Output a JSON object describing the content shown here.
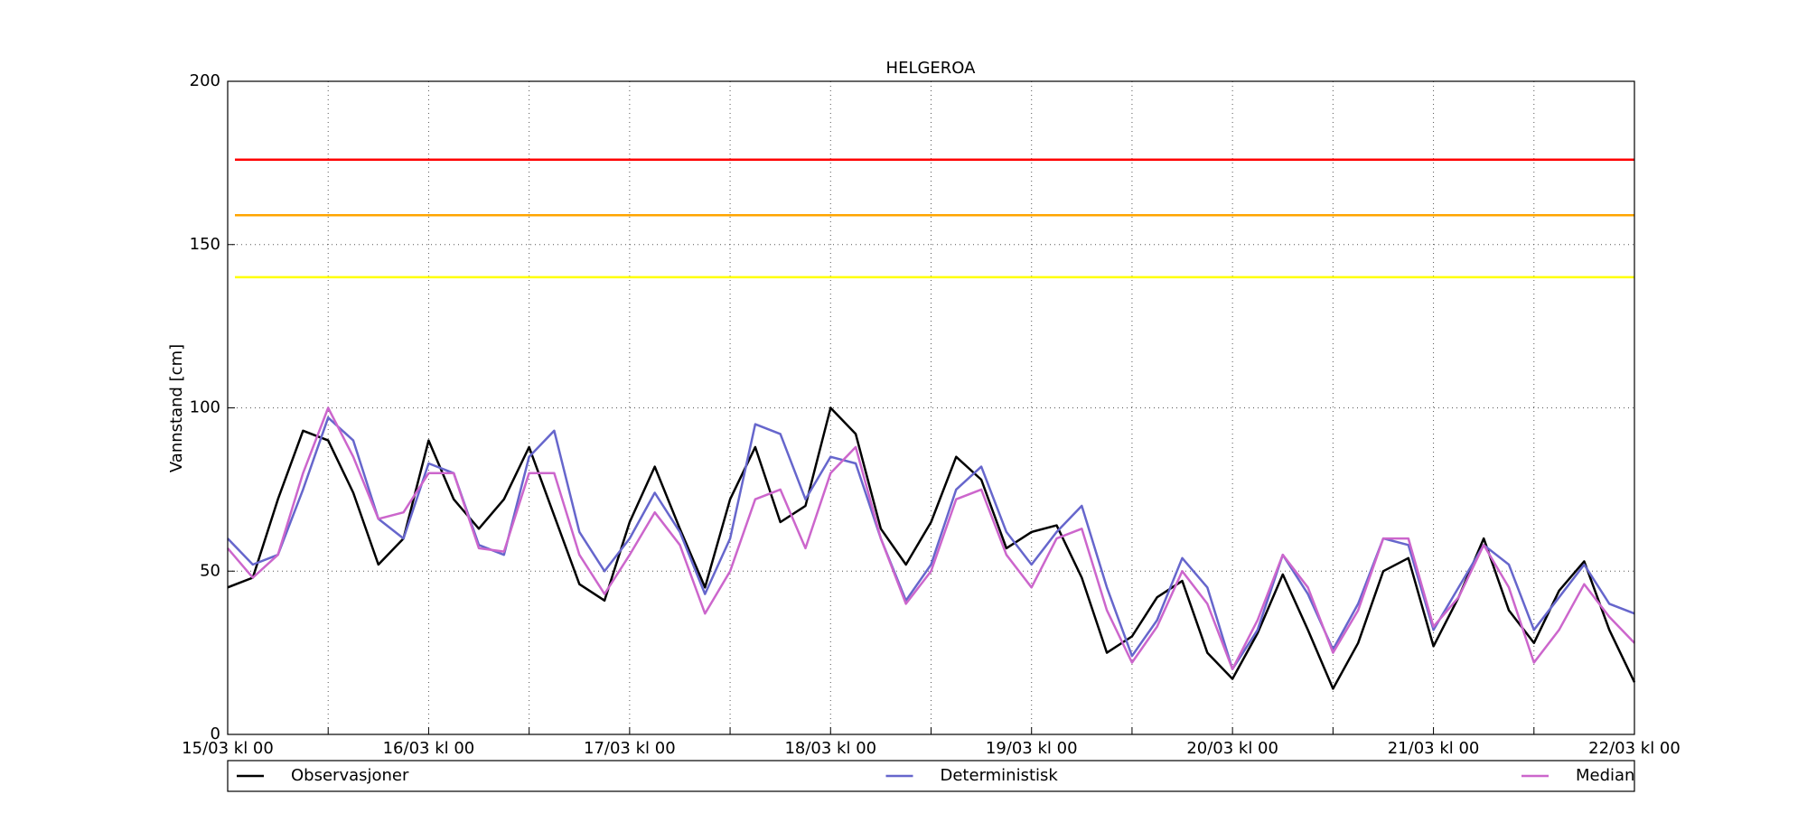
{
  "chart_data": {
    "type": "line",
    "title": "HELGEROA",
    "ylabel": "Vannstand [cm]",
    "x": [
      0,
      3,
      6,
      9,
      12,
      15,
      18,
      21,
      24,
      27,
      30,
      33,
      36,
      39,
      42,
      45,
      48,
      51,
      54,
      57,
      60,
      63,
      66,
      69,
      72,
      75,
      78,
      81,
      84,
      87,
      90,
      93,
      96,
      99,
      102,
      105,
      108,
      111,
      114,
      117,
      120,
      123,
      126,
      129,
      132,
      135,
      138,
      141,
      144,
      147,
      150,
      153,
      156,
      159,
      162,
      165,
      168
    ],
    "series": [
      {
        "name": "Observasjoner",
        "color": "#000000",
        "values": [
          45,
          48,
          72,
          93,
          90,
          74,
          52,
          60,
          90,
          72,
          63,
          72,
          88,
          67,
          46,
          41,
          65,
          82,
          63,
          45,
          72,
          88,
          65,
          70,
          100,
          92,
          63,
          52,
          65,
          85,
          78,
          57,
          62,
          64,
          48,
          25,
          30,
          42,
          47,
          25,
          17,
          31,
          49,
          32,
          14,
          28,
          50,
          54,
          27,
          42,
          60,
          38,
          28,
          44,
          53,
          32,
          16
        ]
      },
      {
        "name": "Deterministisk",
        "color": "#6666cc",
        "values": [
          60,
          52,
          55,
          75,
          97,
          90,
          66,
          60,
          83,
          80,
          58,
          55,
          85,
          93,
          62,
          50,
          60,
          74,
          62,
          43,
          60,
          95,
          92,
          72,
          85,
          83,
          60,
          41,
          52,
          75,
          82,
          62,
          52,
          62,
          70,
          45,
          24,
          35,
          54,
          45,
          20,
          32,
          55,
          43,
          26,
          40,
          60,
          58,
          32,
          45,
          58,
          52,
          32,
          42,
          52,
          40,
          37
        ]
      },
      {
        "name": "Median",
        "color": "#cc66cc",
        "values": [
          57,
          48,
          55,
          80,
          100,
          85,
          66,
          68,
          80,
          80,
          57,
          56,
          80,
          80,
          55,
          43,
          55,
          68,
          58,
          37,
          50,
          72,
          75,
          57,
          80,
          88,
          60,
          40,
          50,
          72,
          75,
          55,
          45,
          60,
          63,
          38,
          22,
          33,
          50,
          40,
          20,
          35,
          55,
          45,
          25,
          38,
          60,
          60,
          33,
          42,
          58,
          45,
          22,
          32,
          46,
          36,
          28
        ]
      }
    ],
    "hlines": [
      {
        "value": 176,
        "color": "#ff0000"
      },
      {
        "value": 159,
        "color": "#ffa500"
      },
      {
        "value": 140,
        "color": "#ffff00"
      }
    ],
    "xlim": [
      0,
      168
    ],
    "xticks": [
      {
        "value": 0,
        "label": "15/03 kl 00"
      },
      {
        "value": 24,
        "label": "16/03 kl 00"
      },
      {
        "value": 48,
        "label": "17/03 kl 00"
      },
      {
        "value": 72,
        "label": "18/03 kl 00"
      },
      {
        "value": 96,
        "label": "19/03 kl 00"
      },
      {
        "value": 120,
        "label": "20/03 kl 00"
      },
      {
        "value": 144,
        "label": "21/03 kl 00"
      },
      {
        "value": 168,
        "label": "22/03 kl 00"
      }
    ],
    "xminor": [
      12,
      36,
      60,
      84,
      108,
      132,
      156
    ],
    "ylim": [
      0,
      200
    ],
    "yticks": [
      0,
      50,
      100,
      150,
      200
    ],
    "grid": true,
    "legend": "bottom"
  }
}
